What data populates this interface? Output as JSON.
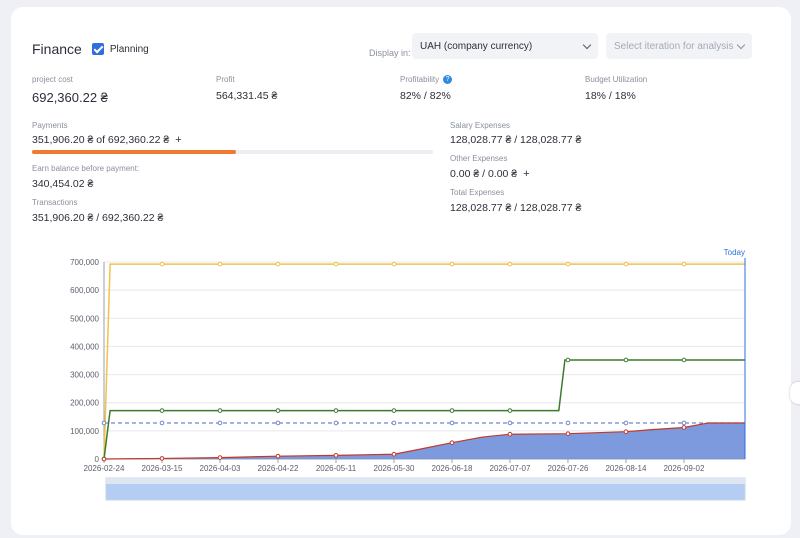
{
  "header": {
    "title": "Finance",
    "planning_label": "Planning",
    "planning_checked": true,
    "display_in_label": "Display in:",
    "currency_value": "UAH (company currency)",
    "iteration_placeholder": "Select iteration for analysis"
  },
  "stats": {
    "project_cost": {
      "label": "project cost",
      "value": "692,360.22 ₴"
    },
    "profit": {
      "label": "Profit",
      "value": "564,331.45 ₴"
    },
    "profitability": {
      "label": "Profitability",
      "value": "82% / 82%"
    },
    "budget_utilization": {
      "label": "Budget Utilization",
      "value": "18% / 18%"
    }
  },
  "payments": {
    "label": "Payments",
    "value": "351,906.20 ₴ of 692,360.22 ₴",
    "progress_fraction": 0.508
  },
  "earn_balance": {
    "label": "Earn balance before payment:",
    "value": "340,454.02 ₴"
  },
  "transactions": {
    "label": "Transactions",
    "value": "351,906.20 ₴ / 692,360.22 ₴"
  },
  "salary_expenses": {
    "label": "Salary Expenses",
    "value": "128,028.77 ₴ / 128,028.77 ₴"
  },
  "other_expenses": {
    "label": "Other Expenses",
    "value": "0.00 ₴ / 0.00 ₴"
  },
  "total_expenses": {
    "label": "Total Expenses",
    "value": "128,028.77 ₴ / 128,028.77 ₴"
  },
  "colors": {
    "accent": "#2f6ee2",
    "progress": "#ef7a32",
    "cost_line": "#f2c24a",
    "payments_line": "#3c7a2c",
    "expenses_line": "#c0392b",
    "expenses_fill": "#6f8fdc",
    "budget_line": "#6d87c9"
  },
  "chart_data": {
    "type": "line",
    "today_label": "Today",
    "x_ticks": [
      "2026-02-24",
      "2026-03-15",
      "2026-04-03",
      "2026-04-22",
      "2026-05-11",
      "2026-05-30",
      "2026-06-18",
      "2026-07-07",
      "2026-07-26",
      "2026-08-14",
      "2026-09-02"
    ],
    "y_ticks": [
      "0",
      "100,000",
      "200,000",
      "300,000",
      "400,000",
      "500,000",
      "600,000",
      "700,000"
    ],
    "ylim": [
      0,
      700000
    ],
    "x_start": "2026-02-24",
    "x_end": "2026-09-22",
    "today": "2026-09-22",
    "series": [
      {
        "type": "line",
        "color": "#f2c24a",
        "points": [
          [
            "2026-02-24",
            0
          ],
          [
            "2026-02-26",
            692360
          ],
          [
            "2026-09-22",
            692360
          ]
        ]
      },
      {
        "type": "step",
        "color": "#3c7a2c",
        "points": [
          [
            "2026-02-24",
            0
          ],
          [
            "2026-02-26",
            172000
          ],
          [
            "2026-07-23",
            172000
          ],
          [
            "2026-07-25",
            351906
          ],
          [
            "2026-09-22",
            351906
          ]
        ]
      },
      {
        "type": "dashed",
        "color": "#6d87c9",
        "points": [
          [
            "2026-02-24",
            128028
          ],
          [
            "2026-09-22",
            128028
          ]
        ]
      },
      {
        "type": "area",
        "color": "#c0392b",
        "fill": "#6f8fdc",
        "points": [
          [
            "2026-02-24",
            0
          ],
          [
            "2026-03-15",
            2000
          ],
          [
            "2026-04-03",
            5000
          ],
          [
            "2026-04-22",
            10000
          ],
          [
            "2026-05-11",
            13000
          ],
          [
            "2026-05-30",
            17000
          ],
          [
            "2026-06-08",
            36000
          ],
          [
            "2026-06-18",
            58000
          ],
          [
            "2026-06-28",
            78000
          ],
          [
            "2026-07-07",
            88000
          ],
          [
            "2026-07-26",
            90000
          ],
          [
            "2026-08-14",
            97000
          ],
          [
            "2026-08-22",
            104000
          ],
          [
            "2026-09-02",
            112000
          ],
          [
            "2026-09-10",
            128028
          ],
          [
            "2026-09-22",
            128028
          ]
        ]
      }
    ]
  }
}
